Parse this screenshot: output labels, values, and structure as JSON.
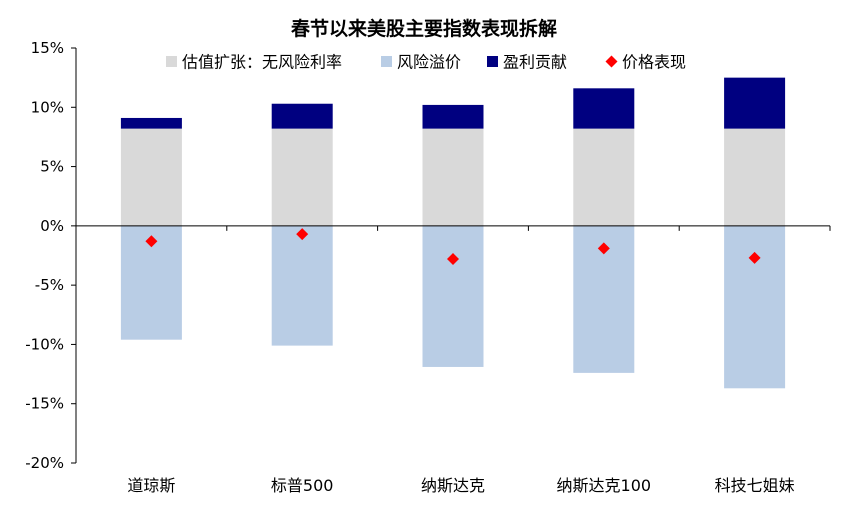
{
  "chart_data": {
    "type": "bar",
    "stacked": true,
    "title": "春节以来美股主要指数表现拆解",
    "categories": [
      "道琼斯",
      "标普500",
      "纳斯达克",
      "纳斯达克100",
      "科技七姐妹"
    ],
    "series": [
      {
        "name": "估值扩张：无风险利率",
        "kind": "bar",
        "color": "#d9d9d9",
        "values": [
          8.2,
          8.2,
          8.2,
          8.2,
          8.2
        ]
      },
      {
        "name": "风险溢价",
        "kind": "bar",
        "color": "#b9cde5",
        "values": [
          -9.6,
          -10.1,
          -11.9,
          -12.4,
          -13.7
        ]
      },
      {
        "name": "盈利贡献",
        "kind": "bar",
        "color": "#000080",
        "values": [
          0.9,
          2.1,
          2.0,
          3.4,
          4.3
        ]
      },
      {
        "name": "价格表现",
        "kind": "marker",
        "color": "#ff0000",
        "values": [
          -1.3,
          -0.7,
          -2.8,
          -1.9,
          -2.7
        ]
      }
    ],
    "ylim": [
      -20,
      15
    ],
    "yticks": [
      15,
      10,
      5,
      0,
      -5,
      -10,
      -15,
      -20
    ],
    "ytick_format": "percent",
    "xlabel": "",
    "ylabel": "",
    "legend_position": "top",
    "grid": false
  }
}
